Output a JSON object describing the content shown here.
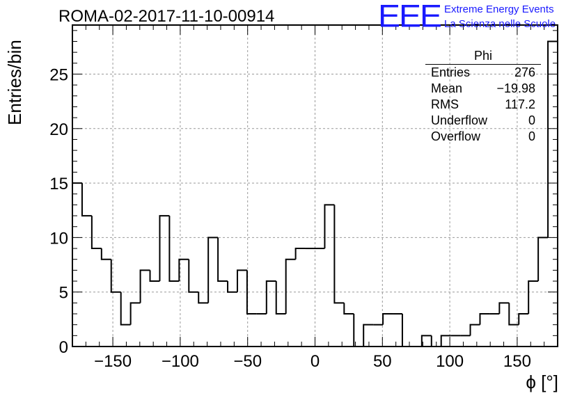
{
  "title": "ROMA-02-2017-11-10-00914",
  "logo": {
    "mark": "EEE",
    "line1": "Extreme Energy Events",
    "line2": "La Scienza nelle Scuole",
    "color": "#1a1aff"
  },
  "stats": {
    "title": "Phi",
    "rows": [
      {
        "label": "Entries",
        "value": "276"
      },
      {
        "label": "Mean",
        "value": "−19.98"
      },
      {
        "label": "RMS",
        "value": "117.2"
      },
      {
        "label": "Underflow",
        "value": "0"
      },
      {
        "label": "Overflow",
        "value": "0"
      }
    ]
  },
  "chart_data": {
    "type": "bar",
    "style": "step-histogram",
    "title": "ROMA-02-2017-11-10-00914",
    "xlabel": "ϕ [°]",
    "ylabel": "Entries/bin",
    "xlim": [
      -180,
      180
    ],
    "ylim": [
      0,
      29.5
    ],
    "bin_width": 7.2,
    "bin_edges_start": -180,
    "values": [
      15,
      12,
      9,
      8,
      5,
      2,
      4,
      7,
      6,
      12,
      6,
      8,
      5,
      4,
      10,
      6,
      5,
      7,
      3,
      3,
      6,
      3,
      8,
      9,
      9,
      9,
      13,
      4,
      3,
      0,
      2,
      2,
      3,
      3,
      0,
      0,
      1,
      0,
      1,
      1,
      1,
      2,
      3,
      3,
      4,
      2,
      3,
      6,
      10,
      28
    ],
    "x_ticks": [
      -150,
      -100,
      -50,
      0,
      50,
      100,
      150
    ],
    "x_tick_labels": [
      "−150",
      "−100",
      "−50",
      "0",
      "50",
      "100",
      "150"
    ],
    "y_ticks": [
      0,
      5,
      10,
      15,
      20,
      25
    ],
    "y_tick_labels": [
      "0",
      "5",
      "10",
      "15",
      "20",
      "25"
    ],
    "grid": true,
    "line_color": "#000000"
  }
}
